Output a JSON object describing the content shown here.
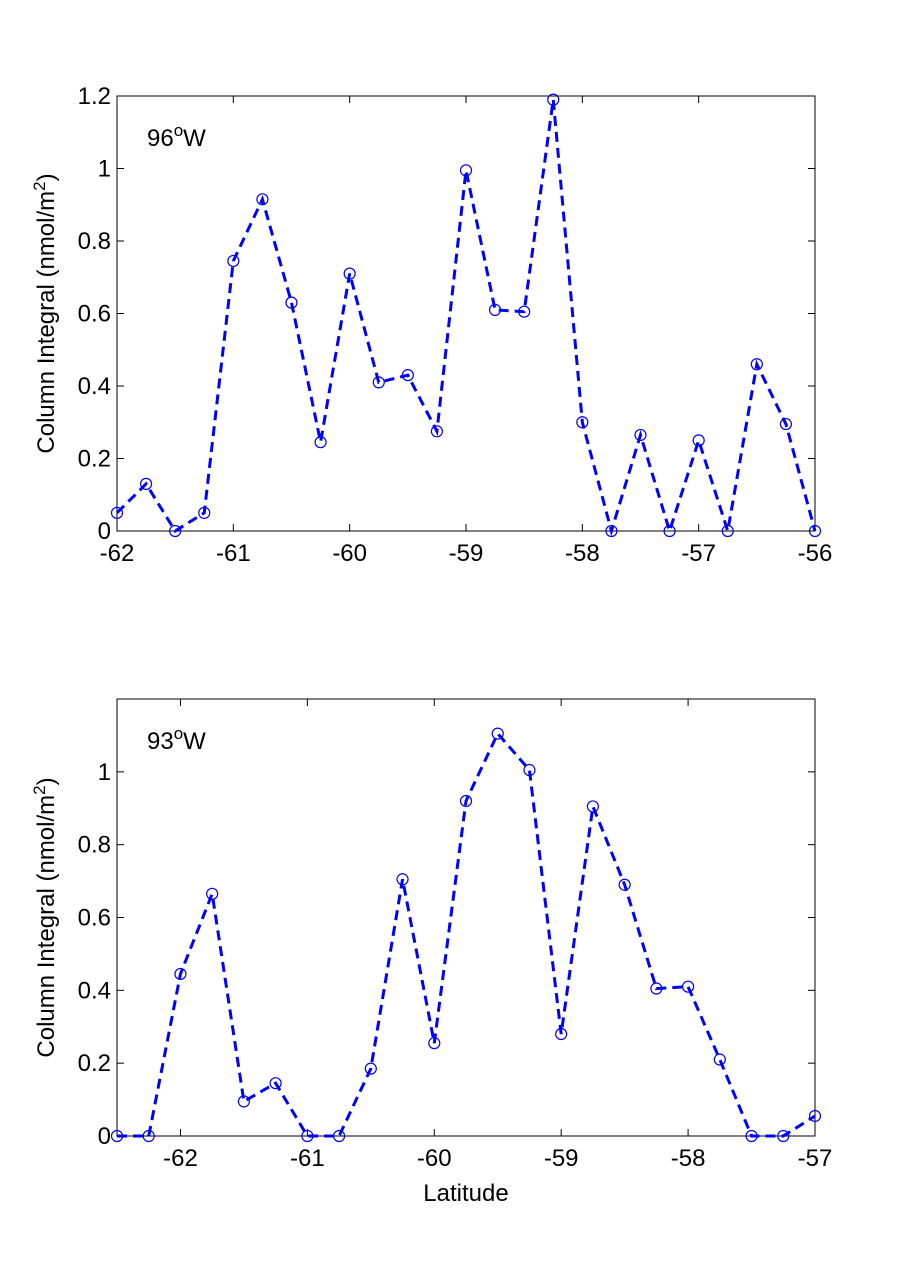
{
  "chart_data": [
    {
      "type": "line",
      "annotation": "96",
      "annotation_sup": "o",
      "annotation_suffix": "W",
      "xlabel": "",
      "ylabel": "Column Integral (nmol/m",
      "ylabel_sup": "2",
      "ylabel_close": ")",
      "xlim": [
        -62,
        -56
      ],
      "ylim": [
        0,
        1.2
      ],
      "xticks": [
        -62,
        -61,
        -60,
        -59,
        -58,
        -57,
        -56
      ],
      "yticks": [
        0,
        0.2,
        0.4,
        0.6,
        0.8,
        1,
        1.2
      ],
      "xtick_labels": [
        "-62",
        "-61",
        "-60",
        "-59",
        "-58",
        "-57",
        "-56"
      ],
      "ytick_labels": [
        "0",
        "0.2",
        "0.4",
        "0.6",
        "0.8",
        "1",
        "1.2"
      ],
      "color": "#0000ff",
      "series": [
        {
          "x": [
            -62,
            -61.75,
            -61.5,
            -61.25,
            -61,
            -60.75,
            -60.5,
            -60.25,
            -60,
            -59.75,
            -59.5,
            -59.25,
            -59,
            -58.75,
            -58.5,
            -58.25,
            -58,
            -57.75,
            -57.5,
            -57.25,
            -57,
            -56.75,
            -56.5,
            -56.25,
            -56
          ],
          "y": [
            0.05,
            0.13,
            0.0,
            0.05,
            0.745,
            0.915,
            0.63,
            0.245,
            0.71,
            0.41,
            0.43,
            0.275,
            0.995,
            0.61,
            0.605,
            1.19,
            0.3,
            0.0,
            0.265,
            0.0,
            0.25,
            0.0,
            0.46,
            0.295,
            0.0
          ]
        }
      ]
    },
    {
      "type": "line",
      "annotation": "93",
      "annotation_sup": "o",
      "annotation_suffix": "W",
      "xlabel": "Latitude",
      "ylabel": "Column Integral (nmol/m",
      "ylabel_sup": "2",
      "ylabel_close": ")",
      "xlim": [
        -62.5,
        -57
      ],
      "ylim": [
        0,
        1.2
      ],
      "xticks": [
        -62,
        -61,
        -60,
        -59,
        -58,
        -57
      ],
      "yticks": [
        0,
        0.2,
        0.4,
        0.6,
        0.8,
        1
      ],
      "xtick_labels": [
        "-62",
        "-61",
        "-60",
        "-59",
        "-58",
        "-57"
      ],
      "ytick_labels": [
        "0",
        "0.2",
        "0.4",
        "0.6",
        "0.8",
        "1"
      ],
      "color": "#0000ff",
      "series": [
        {
          "x": [
            -62.5,
            -62.25,
            -62,
            -61.75,
            -61.5,
            -61.25,
            -61,
            -60.75,
            -60.5,
            -60.25,
            -60,
            -59.75,
            -59.5,
            -59.25,
            -59,
            -58.75,
            -58.5,
            -58.25,
            -58,
            -57.75,
            -57.5,
            -57.25,
            -57
          ],
          "y": [
            0.0,
            0.0,
            0.445,
            0.665,
            0.095,
            0.145,
            0.0,
            0.0,
            0.185,
            0.705,
            0.255,
            0.92,
            1.105,
            1.005,
            0.28,
            0.905,
            0.69,
            0.405,
            0.41,
            0.21,
            0.0,
            0.0,
            0.055
          ]
        }
      ]
    }
  ]
}
